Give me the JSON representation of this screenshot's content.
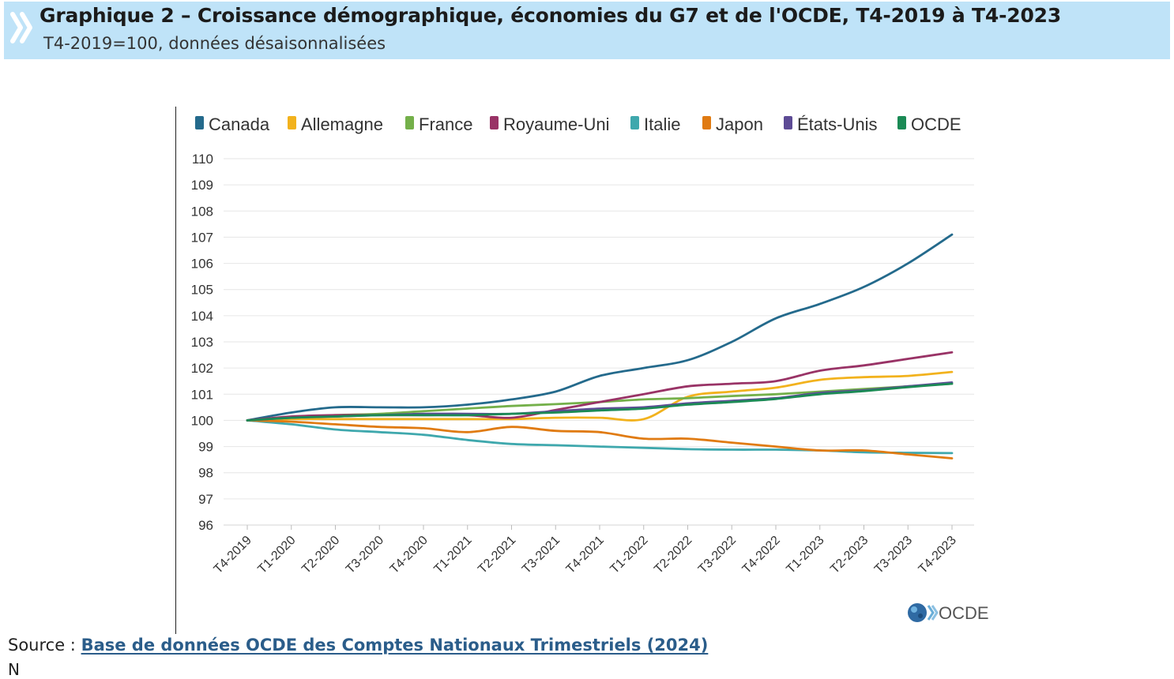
{
  "header": {
    "title": "Graphique 2 – Croissance démographique, économies du G7 et de l'OCDE, T4-2019 à T4-2023",
    "subtitle": "T4-2019=100, données désaisonnalisées",
    "icon": "double-chevron-icon"
  },
  "colors": {
    "header_bg": "#bfe3f8",
    "Canada": "#246a8c",
    "Allemagne": "#f2b21d",
    "France": "#74b04a",
    "Royaume-Uni": "#993366",
    "Italie": "#3fa8ad",
    "Japon": "#e07b12",
    "États-Unis": "#5d4b95",
    "OCDE": "#1b8a55"
  },
  "chart_data": {
    "type": "line",
    "x": [
      "T4-2019",
      "T1-2020",
      "T2-2020",
      "T3-2020",
      "T4-2020",
      "T1-2021",
      "T2-2021",
      "T3-2021",
      "T4-2021",
      "T1-2022",
      "T2-2022",
      "T3-2022",
      "T4-2022",
      "T1-2023",
      "T2-2023",
      "T3-2023",
      "T4-2023"
    ],
    "ylim": [
      96,
      110
    ],
    "yticks": [
      96,
      97,
      98,
      99,
      100,
      101,
      102,
      103,
      104,
      105,
      106,
      107,
      108,
      109,
      110
    ],
    "grid": "horizontal",
    "legend_position": "top",
    "series": [
      {
        "name": "Canada",
        "values": [
          100,
          100.3,
          100.5,
          100.5,
          100.5,
          100.6,
          100.8,
          101.1,
          101.7,
          102.0,
          102.3,
          103.0,
          103.9,
          104.45,
          105.1,
          106.0,
          107.1
        ]
      },
      {
        "name": "Allemagne",
        "values": [
          100,
          100.05,
          100.05,
          100.05,
          100.05,
          100.05,
          100.05,
          100.1,
          100.1,
          100.05,
          100.9,
          101.1,
          101.25,
          101.55,
          101.65,
          101.7,
          101.85
        ]
      },
      {
        "name": "France",
        "values": [
          100,
          100.1,
          100.2,
          100.25,
          100.35,
          100.45,
          100.55,
          100.62,
          100.7,
          100.8,
          100.85,
          100.93,
          101.0,
          101.1,
          101.2,
          101.3,
          101.4
        ]
      },
      {
        "name": "Royaume-Uni",
        "values": [
          100,
          100.15,
          100.2,
          100.2,
          100.2,
          100.2,
          100.1,
          100.4,
          100.7,
          101.0,
          101.3,
          101.4,
          101.5,
          101.9,
          102.1,
          102.35,
          102.6
        ]
      },
      {
        "name": "Italie",
        "values": [
          100,
          99.85,
          99.65,
          99.55,
          99.45,
          99.25,
          99.1,
          99.05,
          99.0,
          98.95,
          98.9,
          98.88,
          98.88,
          98.85,
          98.78,
          98.76,
          98.75
        ]
      },
      {
        "name": "Japon",
        "values": [
          100,
          99.95,
          99.85,
          99.75,
          99.7,
          99.55,
          99.75,
          99.6,
          99.55,
          99.3,
          99.3,
          99.15,
          99.0,
          98.85,
          98.85,
          98.7,
          98.55
        ]
      },
      {
        "name": "États-Unis",
        "values": [
          100,
          100.1,
          100.15,
          100.2,
          100.25,
          100.25,
          100.25,
          100.35,
          100.45,
          100.5,
          100.65,
          100.75,
          100.85,
          101.05,
          101.15,
          101.3,
          101.45
        ]
      },
      {
        "name": "OCDE",
        "values": [
          100,
          100.1,
          100.15,
          100.2,
          100.2,
          100.2,
          100.25,
          100.3,
          100.38,
          100.45,
          100.6,
          100.7,
          100.82,
          101.0,
          101.12,
          101.27,
          101.4
        ]
      }
    ]
  },
  "logo": {
    "text": "OCDE",
    "icon": "globe-icon"
  },
  "footer": {
    "source_label": "Source : ",
    "source_link": "Base de données OCDE des Comptes Nationaux Trimestriels (2024)",
    "notes_cut": "N"
  }
}
